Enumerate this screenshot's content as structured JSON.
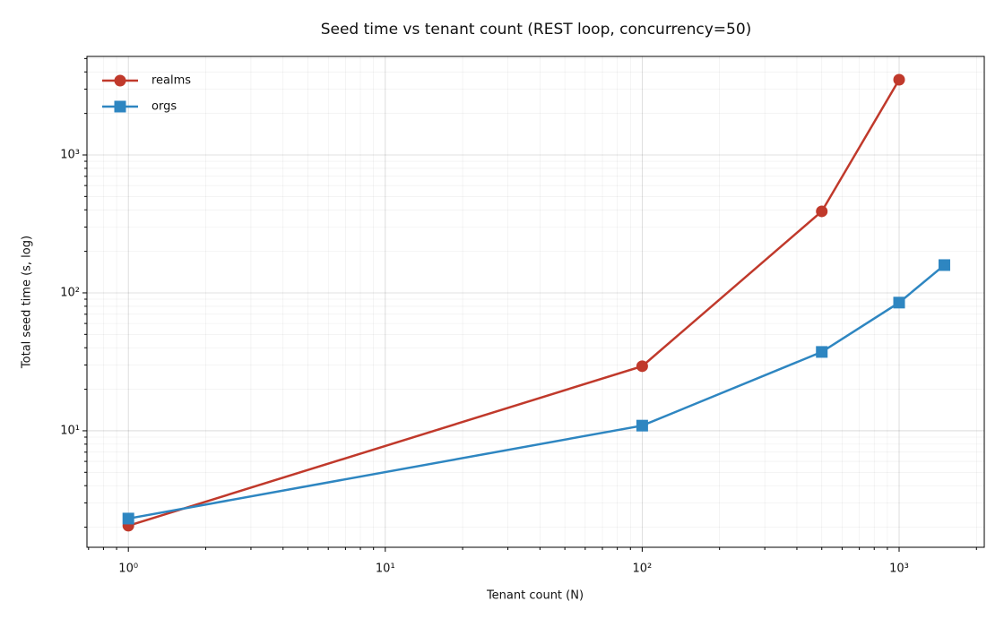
{
  "chart_data": {
    "type": "line",
    "title": "Seed time vs tenant count (REST loop, concurrency=50)",
    "x_label": "Tenant count (N)",
    "y_label": "Total seed time (s, log)",
    "x_scale": "log",
    "y_scale": "log",
    "grid": true,
    "legend": "upper-left",
    "xlim": [
      0.69,
      2145
    ],
    "ylim": [
      1.43,
      5180
    ],
    "xticks": [
      {
        "value": 1,
        "label": "10⁰"
      },
      {
        "value": 10,
        "label": "10¹"
      },
      {
        "value": 100,
        "label": "10²"
      },
      {
        "value": 1000,
        "label": "10³"
      }
    ],
    "yticks": [
      {
        "value": 10,
        "label": "10¹"
      },
      {
        "value": 100,
        "label": "10²"
      },
      {
        "value": 1000,
        "label": "10³"
      }
    ],
    "series": [
      {
        "name": "realms",
        "color": "#c0392b",
        "marker": "circle",
        "x": [
          1,
          100,
          500,
          1000
        ],
        "values": [
          2.05,
          29.4,
          390,
          3510
        ]
      },
      {
        "name": "orgs",
        "color": "#2e86c1",
        "marker": "square",
        "x": [
          1,
          100,
          500,
          1000,
          1500
        ],
        "values": [
          2.31,
          10.9,
          37.3,
          85,
          159
        ]
      }
    ]
  }
}
